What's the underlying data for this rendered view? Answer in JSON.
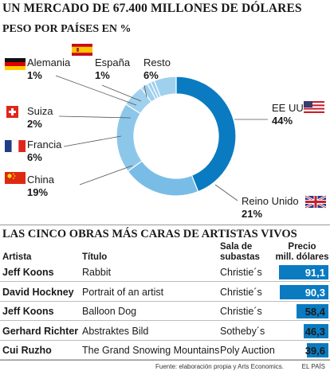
{
  "title": "UN MERCADO DE 67.400 MILLONES DE DÓLARES",
  "subtitle": "PESO POR PAÍSES EN %",
  "section2_title": "LAS CINCO OBRAS MÁS CARAS DE ARTISTAS VIVOS",
  "colors": {
    "dark_blue": "#0a7bc1",
    "light_blue": "#79bde6",
    "light_blue_small": "#9fd0ee",
    "bar": "#0a7bc1"
  },
  "chart_data": [
    {
      "type": "pie",
      "title": "PESO POR PAÍSES EN %",
      "slices": [
        {
          "name": "EE UU",
          "value": 44,
          "label": "44%",
          "color": "#0a7bc1"
        },
        {
          "name": "Reino Unido",
          "value": 21,
          "label": "21%",
          "color": "#79bde6"
        },
        {
          "name": "China",
          "value": 19,
          "label": "19%",
          "color": "#8cc7ea"
        },
        {
          "name": "Francia",
          "value": 6,
          "label": "6%",
          "color": "#9fd0ee"
        },
        {
          "name": "Suiza",
          "value": 2,
          "label": "2%",
          "color": "#9fd0ee"
        },
        {
          "name": "Alemania",
          "value": 1,
          "label": "1%",
          "color": "#9fd0ee"
        },
        {
          "name": "España",
          "value": 1,
          "label": "1%",
          "color": "#9fd0ee"
        },
        {
          "name": "Resto",
          "value": 6,
          "label": "6%",
          "color": "#9fd0ee"
        }
      ]
    },
    {
      "type": "table",
      "title": "LAS CINCO OBRAS MÁS CARAS DE ARTISTAS VIVOS",
      "columns": [
        "Artista",
        "Título",
        "Sala de subastas",
        "Precio mill. dólares"
      ],
      "rows": [
        {
          "artist": "Jeff Koons",
          "work": "Rabbit",
          "house": "Christie´s",
          "value": 91.1,
          "value_label": "91,1"
        },
        {
          "artist": "David Hockney",
          "work": "Portrait of an artist",
          "house": "Christie´s",
          "value": 90.3,
          "value_label": "90,3"
        },
        {
          "artist": "Jeff Koons",
          "work": "Balloon Dog",
          "house": "Christie´s",
          "value": 58.4,
          "value_label": "58,4"
        },
        {
          "artist": "Gerhard Richter",
          "work": "Abstraktes Bild",
          "house": "Sotheby´s",
          "value": 46.3,
          "value_label": "46,3"
        },
        {
          "artist": "Cui Ruzho",
          "work": "The Grand Snowing Mountains",
          "house": "Poly Auction",
          "value": 39.6,
          "value_label": "39,6"
        }
      ],
      "value_max": 91.1
    }
  ],
  "table_headers": {
    "artist": "Artista",
    "work": "Título",
    "house_1": "Sala de",
    "house_2": "subastas",
    "price_1": "Precio",
    "price_2": "mill. dólares"
  },
  "source": "Fuente: elaboración propia y Arts Economics.",
  "brand": "EL PAÍS"
}
